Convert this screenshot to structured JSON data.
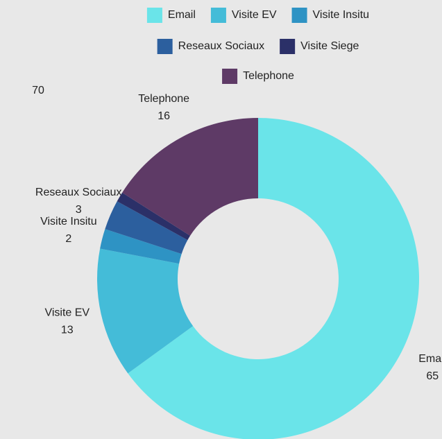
{
  "chart_data": {
    "type": "donut",
    "categories": [
      "Email",
      "Visite EV",
      "Visite Insitu",
      "Reseaux Sociaux",
      "Visite Siege",
      "Telephone"
    ],
    "values": [
      65,
      13,
      2,
      3,
      1,
      16
    ],
    "value_labels": [
      "65",
      "13",
      "2",
      "3",
      null,
      "16"
    ],
    "colors": [
      "#6ae4e9",
      "#44bcd8",
      "#2e93c4",
      "#2c5f9e",
      "#2b3068",
      "#5e3a66"
    ],
    "annotation": "70",
    "legend": "top"
  }
}
